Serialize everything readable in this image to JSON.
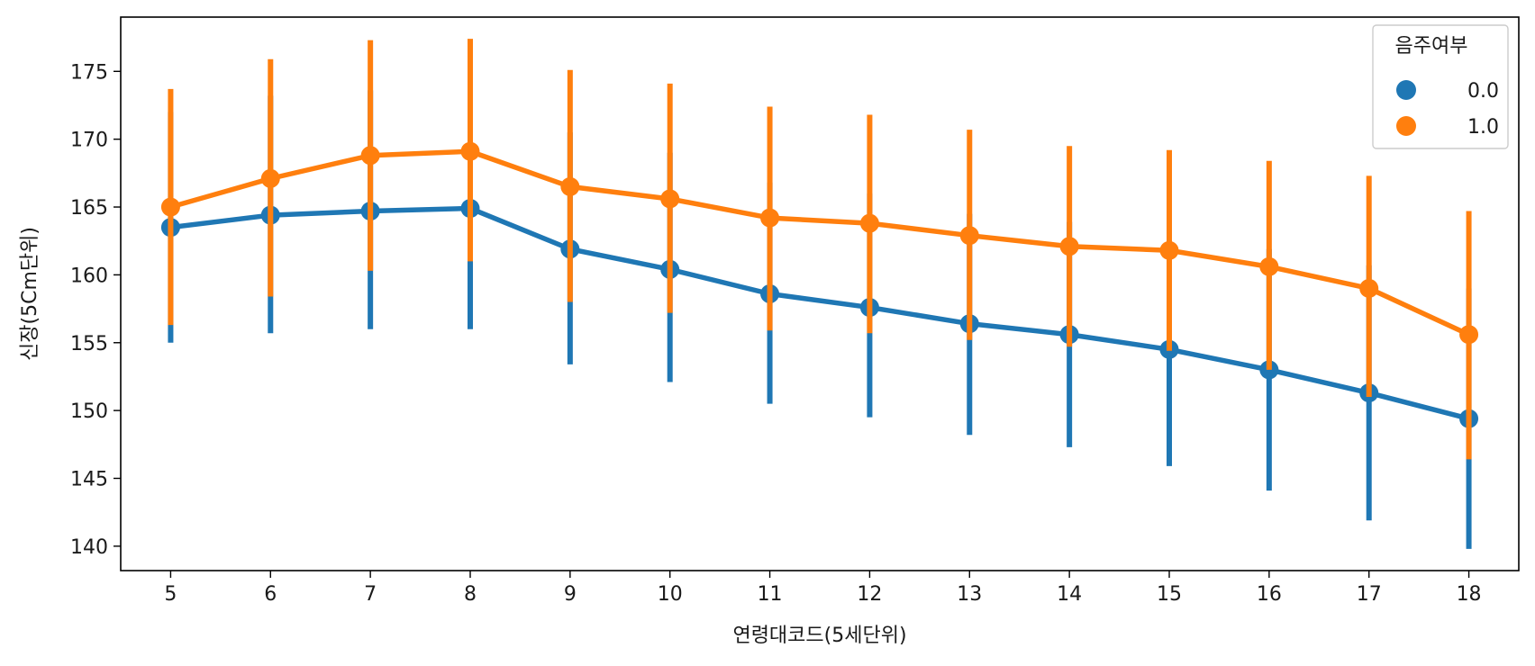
{
  "chart_data": {
    "type": "line",
    "title": "",
    "xlabel": "연령대코드(5세단위)",
    "ylabel": "신장(5Cm단위)",
    "categories": [
      "5",
      "6",
      "7",
      "8",
      "9",
      "10",
      "11",
      "12",
      "13",
      "14",
      "15",
      "16",
      "17",
      "18"
    ],
    "ylim": [
      138.2,
      179.0
    ],
    "yticks": [
      140,
      145,
      150,
      155,
      160,
      165,
      170,
      175
    ],
    "grid": false,
    "legend": {
      "title": "음주여부",
      "position": "top-right"
    },
    "series": [
      {
        "name": "0.0",
        "color": "#1f77b4",
        "values": [
          163.5,
          164.4,
          164.7,
          164.9,
          161.9,
          160.4,
          158.6,
          157.6,
          156.4,
          155.6,
          154.5,
          153.0,
          151.3,
          149.4
        ],
        "error_low": [
          155.0,
          155.7,
          156.0,
          156.0,
          153.4,
          152.1,
          150.5,
          149.5,
          148.2,
          147.3,
          145.9,
          144.1,
          141.9,
          139.8
        ],
        "error_high": [
          172.0,
          173.2,
          173.6,
          174.0,
          170.5,
          169.0,
          166.8,
          166.0,
          164.5,
          163.9,
          163.1,
          161.9,
          160.7,
          159.0
        ]
      },
      {
        "name": "1.0",
        "color": "#ff7f0e",
        "values": [
          165.0,
          167.1,
          168.8,
          169.1,
          166.5,
          165.6,
          164.2,
          163.8,
          162.9,
          162.1,
          161.8,
          160.6,
          159.0,
          155.6
        ],
        "error_low": [
          156.3,
          158.4,
          160.3,
          161.0,
          158.0,
          157.2,
          155.9,
          155.7,
          155.2,
          154.7,
          154.4,
          153.0,
          151.0,
          146.4
        ],
        "error_high": [
          173.7,
          175.9,
          177.3,
          177.4,
          175.1,
          174.1,
          172.4,
          171.8,
          170.7,
          169.5,
          169.2,
          168.4,
          167.3,
          164.7
        ]
      }
    ]
  }
}
